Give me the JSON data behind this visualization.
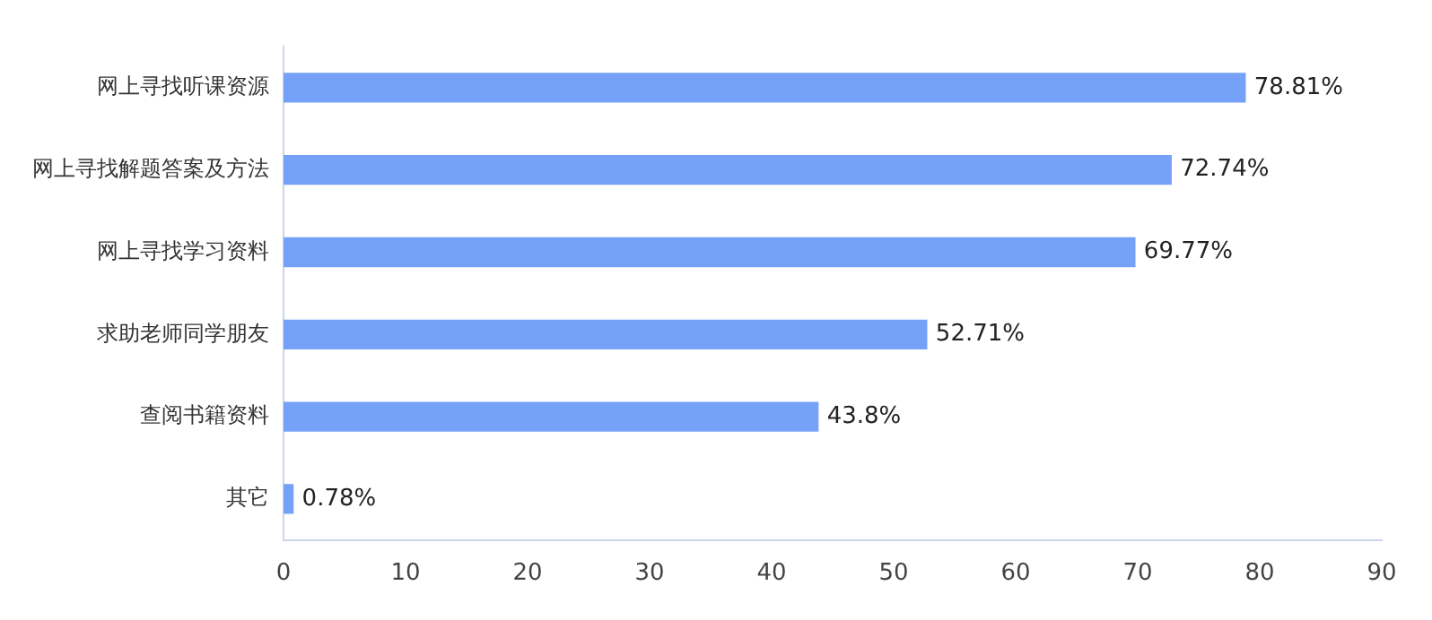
{
  "chart_data": {
    "type": "bar",
    "orientation": "horizontal",
    "categories": [
      "网上寻找听课资源",
      "网上寻找解题答案及方法",
      "网上寻找学习资料",
      "求助老师同学朋友",
      "查阅书籍资料",
      "其它"
    ],
    "values": [
      78.81,
      72.74,
      69.77,
      52.71,
      43.8,
      0.78
    ],
    "value_labels": [
      "78.81%",
      "72.74%",
      "69.77%",
      "52.71%",
      "43.8%",
      "0.78%"
    ],
    "color": "#75a1f9",
    "xlim": [
      0,
      90
    ],
    "xticks": [
      0,
      10,
      20,
      30,
      40,
      50,
      60,
      70,
      80,
      90
    ],
    "grid": false,
    "legend": false
  }
}
